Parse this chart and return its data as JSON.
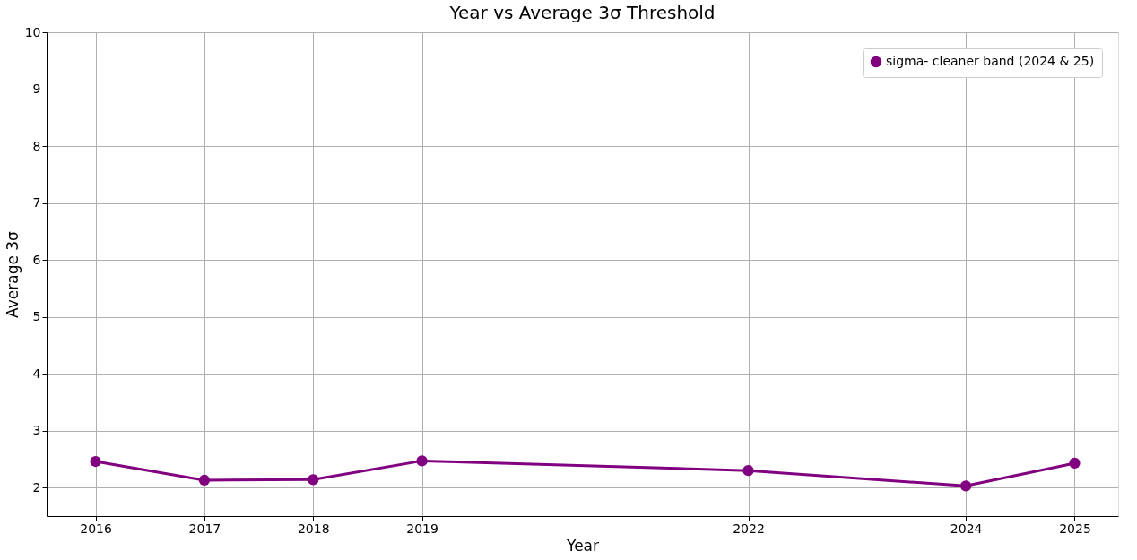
{
  "chart_data": {
    "type": "line",
    "title": "Year vs Average 3σ Threshold",
    "xlabel": "Year",
    "ylabel": "Average 3σ",
    "x": [
      2016,
      2017,
      2018,
      2019,
      2022,
      2024,
      2025
    ],
    "series": [
      {
        "name": "sigma- cleaner band (2024 & 25)",
        "color": "#800080",
        "values": [
          2.46,
          2.13,
          2.14,
          2.47,
          2.3,
          2.03,
          2.43
        ]
      }
    ],
    "xlim": [
      2015.55,
      2025.4
    ],
    "xticks": [
      2016,
      2017,
      2018,
      2019,
      2022,
      2024,
      2025
    ],
    "ylim": [
      1.5,
      10
    ],
    "yticks": [
      2,
      3,
      4,
      5,
      6,
      7,
      8,
      9,
      10
    ],
    "grid": true,
    "legend": "top right",
    "marker": "circle",
    "line_style": "solid"
  }
}
